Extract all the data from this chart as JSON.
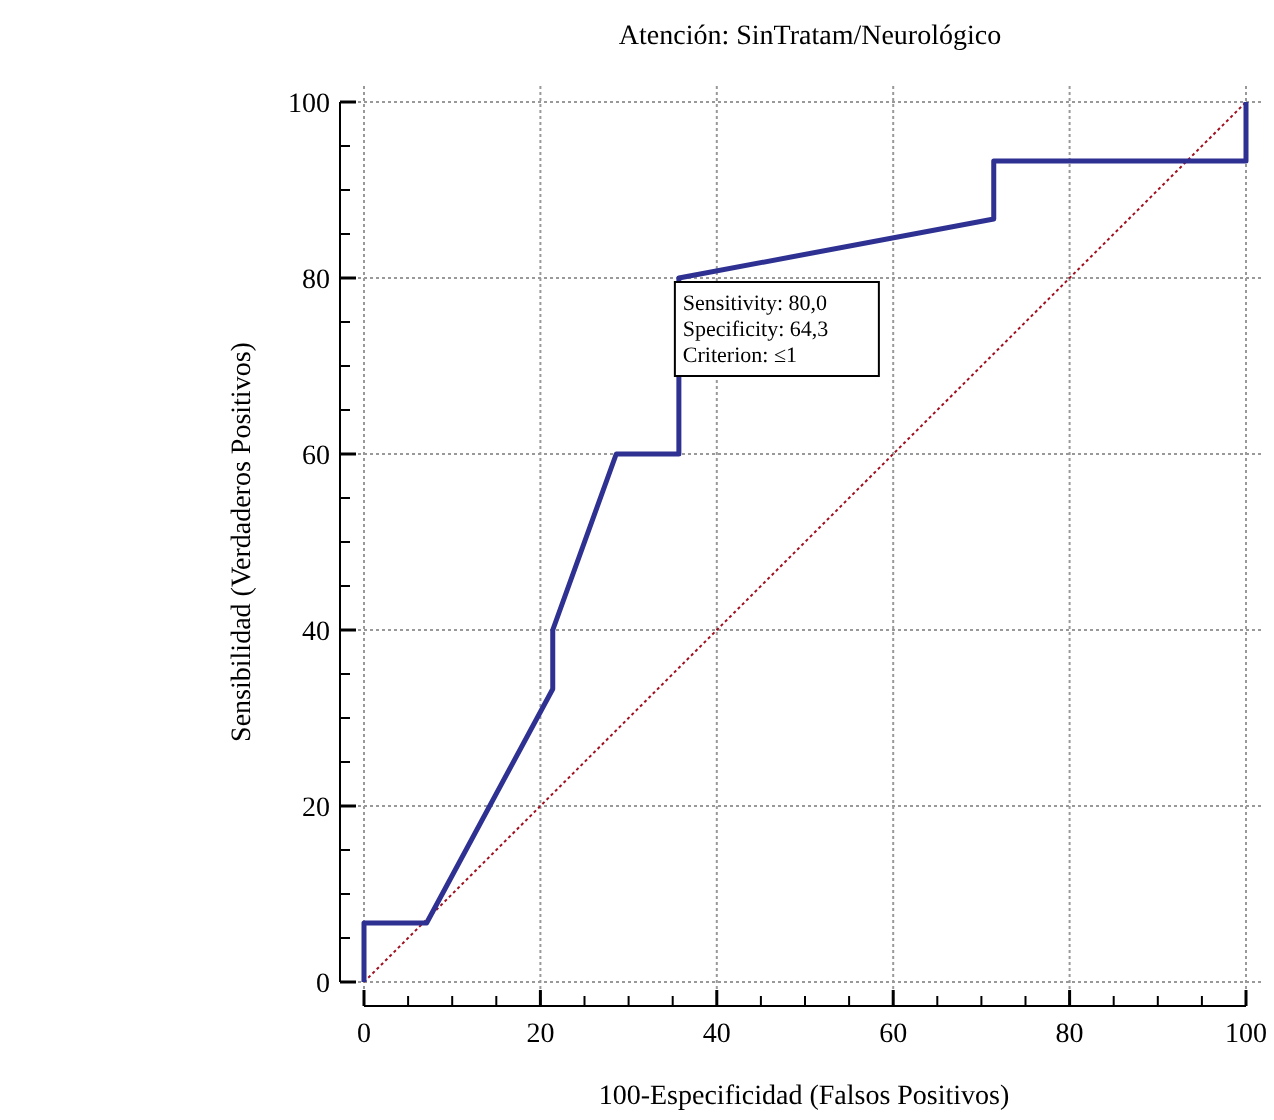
{
  "chart_data": {
    "type": "line",
    "title": "Atención: SinTratam/Neurológico",
    "xlabel": "100-Especificidad (Falsos Positivos)",
    "ylabel": "Sensibilidad (Verdaderos Positivos)",
    "xlim": [
      0,
      100
    ],
    "ylim": [
      0,
      100
    ],
    "xticks": [
      0,
      {
        "value": 5,
        "label": null
      },
      {
        "value": 10,
        "label": null
      },
      {
        "value": 15,
        "label": null
      },
      20,
      {
        "value": 25,
        "label": null
      },
      {
        "value": 30,
        "label": null
      },
      {
        "value": 35,
        "label": null
      },
      40,
      {
        "value": 45,
        "label": null
      },
      {
        "value": 50,
        "label": null
      },
      {
        "value": 55,
        "label": null
      },
      60,
      {
        "value": 65,
        "label": null
      },
      {
        "value": 70,
        "label": null
      },
      {
        "value": 75,
        "label": null
      },
      80,
      {
        "value": 85,
        "label": null
      },
      {
        "value": 90,
        "label": null
      },
      {
        "value": 95,
        "label": null
      },
      100
    ],
    "yticks": [
      0,
      {
        "value": 5,
        "label": null
      },
      {
        "value": 10,
        "label": null
      },
      {
        "value": 15,
        "label": null
      },
      20,
      {
        "value": 25,
        "label": null
      },
      {
        "value": 30,
        "label": null
      },
      {
        "value": 35,
        "label": null
      },
      40,
      {
        "value": 45,
        "label": null
      },
      {
        "value": 50,
        "label": null
      },
      {
        "value": 55,
        "label": null
      },
      60,
      {
        "value": 65,
        "label": null
      },
      {
        "value": 70,
        "label": null
      },
      {
        "value": 75,
        "label": null
      },
      80,
      {
        "value": 85,
        "label": null
      },
      {
        "value": 90,
        "label": null
      },
      {
        "value": 95,
        "label": null
      },
      100
    ],
    "grid": true,
    "marker": "none",
    "series": [
      {
        "color": "#2e3192",
        "line_style": "solid",
        "x": [
          0,
          0,
          7.1,
          21.4,
          21.4,
          28.6,
          35.7,
          35.7,
          71.4,
          71.4,
          100,
          100
        ],
        "values": [
          0,
          6.7,
          6.7,
          33.3,
          40,
          60,
          60,
          80,
          86.7,
          93.3,
          93.3,
          100
        ]
      },
      {
        "color": "#a01020",
        "line_style": "dotted",
        "x": [
          0,
          100
        ],
        "values": [
          0,
          100
        ]
      }
    ],
    "annotations": [
      {
        "text": "Sensitivity: 80,0\nSpecificity: 64,3\nCriterion: ≤1",
        "x": 35.7,
        "y": 80
      }
    ]
  }
}
